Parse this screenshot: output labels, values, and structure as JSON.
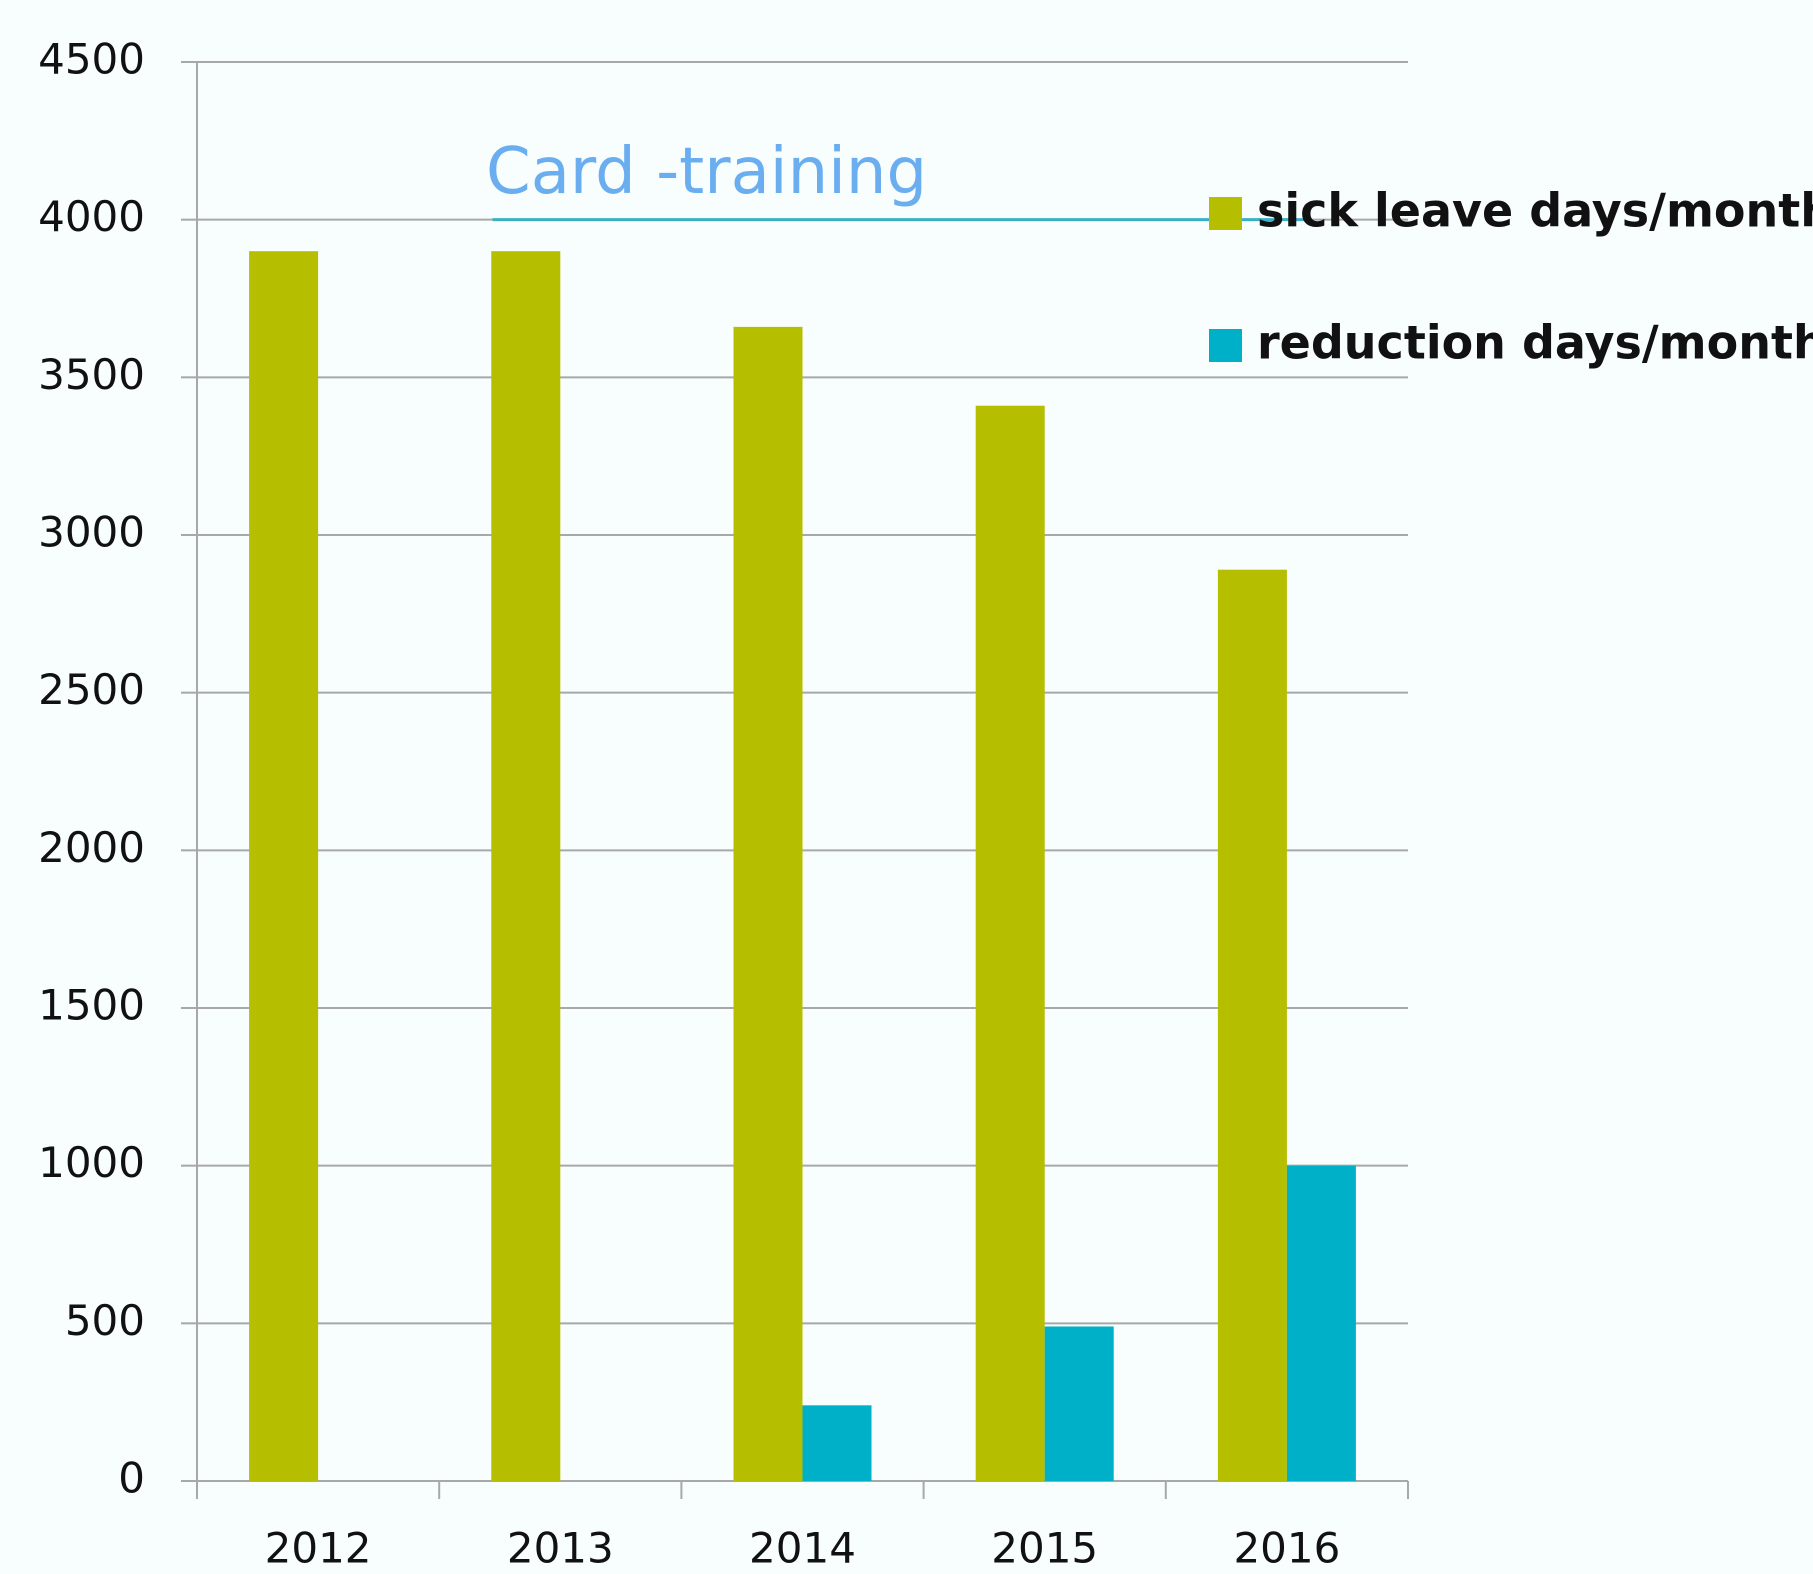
{
  "chart_data": {
    "type": "bar",
    "categories": [
      "2012",
      "2013",
      "2014",
      "2015",
      "2016"
    ],
    "series": [
      {
        "name": "sick leave days/month",
        "color": "#b5bf00",
        "values": [
          3900,
          3900,
          3660,
          3410,
          2890
        ]
      },
      {
        "name": "reduction days/month",
        "color": "#00b0c8",
        "values": [
          0,
          0,
          240,
          490,
          1000
        ]
      }
    ],
    "ylim": [
      0,
      4500
    ],
    "yticks": [
      0,
      500,
      1000,
      1500,
      2000,
      2500,
      3000,
      3500,
      4000,
      4500
    ],
    "grid": true,
    "legend": "right",
    "annotation": {
      "text": "Card -training",
      "y": 4000,
      "color": "#6aaef0"
    }
  }
}
